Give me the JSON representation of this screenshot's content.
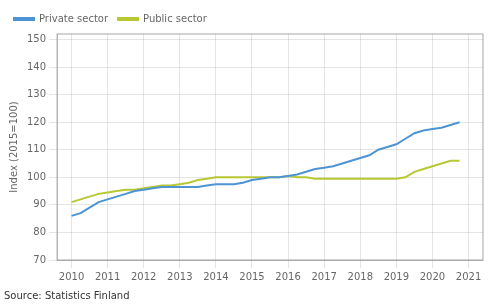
{
  "chart_data": {
    "type": "line",
    "y_label": "Index (2015=100)",
    "annotations": [
      "Source: Statistics Finland"
    ],
    "x": [
      2010,
      2010.25,
      2010.5,
      2010.75,
      2011,
      2011.25,
      2011.5,
      2011.75,
      2012,
      2012.25,
      2012.5,
      2012.75,
      2013,
      2013.25,
      2013.5,
      2013.75,
      2014,
      2014.25,
      2014.5,
      2014.75,
      2015,
      2015.25,
      2015.5,
      2015.75,
      2016,
      2016.25,
      2016.5,
      2016.75,
      2017,
      2017.25,
      2017.5,
      2017.75,
      2018,
      2018.25,
      2018.5,
      2018.75,
      2019,
      2019.25,
      2019.5,
      2019.75,
      2020,
      2020.25,
      2020.5,
      2020.75
    ],
    "series": [
      {
        "name": "Private sector",
        "color": "#4d94d4",
        "values": [
          86,
          87,
          89,
          91,
          92,
          93,
          94,
          95,
          95.5,
          96,
          96.5,
          96.5,
          96.5,
          96.5,
          96.5,
          97,
          97.5,
          97.5,
          97.5,
          98,
          99,
          99.5,
          100,
          100,
          100.5,
          101,
          102,
          103,
          103.5,
          104,
          105,
          106,
          107,
          108,
          110,
          111,
          112,
          114,
          116,
          117,
          117.5,
          118,
          119,
          120
        ]
      },
      {
        "name": "Public sector",
        "color": "#b8c832",
        "values": [
          91,
          92,
          93,
          94,
          94.5,
          95,
          95.5,
          95.5,
          96,
          96.5,
          97,
          97,
          97.5,
          98,
          99,
          99.5,
          100,
          100,
          100,
          100,
          100,
          100,
          100,
          100,
          100.5,
          100,
          100,
          99.5,
          99.5,
          99.5,
          99.5,
          99.5,
          99.5,
          99.5,
          99.5,
          99.5,
          99.5,
          100,
          102,
          103,
          104,
          105,
          106,
          106
        ]
      }
    ],
    "xlim": [
      2009.6,
      2021.4
    ],
    "xticks": [
      2010,
      2011,
      2012,
      2013,
      2014,
      2015,
      2016,
      2017,
      2018,
      2019,
      2020,
      2021
    ],
    "ylim": [
      70,
      152
    ],
    "yticks": [
      70,
      80,
      90,
      100,
      110,
      120,
      130,
      140,
      150
    ],
    "grid": true,
    "legend": "upper left"
  }
}
